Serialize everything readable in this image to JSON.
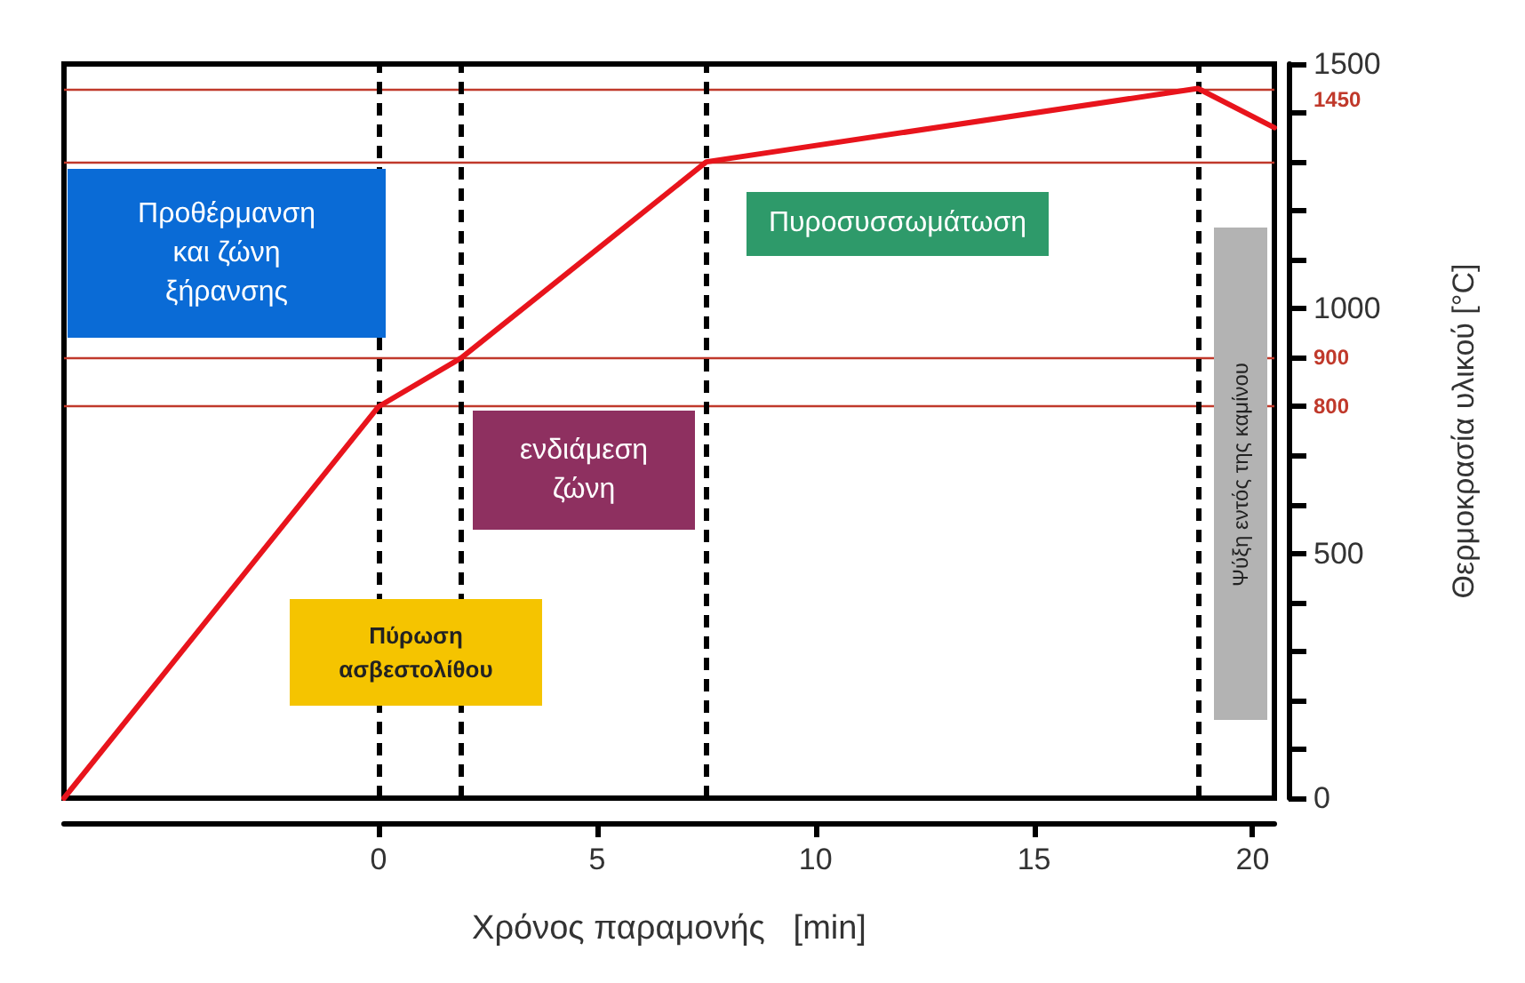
{
  "chart_data": {
    "type": "line",
    "xlabel": "Χρόνος παραμονής   [min]",
    "ylabel": "Θερμοκρασία υλικού [°C]",
    "x": [
      -7.2,
      0,
      1.9,
      7.5,
      18.75,
      20.5
    ],
    "series": [
      {
        "color": "#e8141c",
        "values": [
          0,
          800,
          900,
          1300,
          1450,
          1370
        ]
      }
    ],
    "xlim": [
      -7.2,
      20.5
    ],
    "xticks": [
      0,
      5,
      10,
      15,
      20
    ],
    "ylim": [
      0,
      1500
    ],
    "yticks": [
      0,
      {
        "value": 100,
        "label": null
      },
      {
        "value": 200,
        "label": null
      },
      {
        "value": 300,
        "label": null
      },
      {
        "value": 400,
        "label": null
      },
      500,
      {
        "value": 600,
        "label": null
      },
      {
        "value": 700,
        "label": null
      },
      {
        "value": 800,
        "label": null
      },
      {
        "value": 900,
        "label": null
      },
      1000,
      {
        "value": 1100,
        "label": null
      },
      {
        "value": 1200,
        "label": null
      },
      {
        "value": 1300,
        "label": null
      },
      {
        "value": 1400,
        "label": null
      },
      1500
    ],
    "ref_lines": [
      {
        "axis": "y",
        "value": 1450,
        "label": "1450",
        "color": "#c0392b"
      },
      {
        "axis": "y",
        "value": 1300,
        "color": "#c0392b"
      },
      {
        "axis": "y",
        "value": 900,
        "label": "900",
        "color": "#c0392b"
      },
      {
        "axis": "y",
        "value": 800,
        "label": "800",
        "color": "#c0392b"
      },
      {
        "axis": "x",
        "value": 0,
        "color": "#000000",
        "line_style": "dashed"
      },
      {
        "axis": "x",
        "value": 1.9,
        "color": "#000000",
        "line_style": "dashed"
      },
      {
        "axis": "x",
        "value": 7.5,
        "color": "#000000",
        "line_style": "dashed"
      },
      {
        "axis": "x",
        "value": 18.75,
        "color": "#000000",
        "line_style": "dashed"
      }
    ],
    "annotations": [
      "Προθέρμανση\nκαι ζώνη\nξήρανσης",
      "Πύρωση\nασβεστολίθου",
      "ενδιάμεση\nζώνη",
      "Πυροσυσσωμάτωση",
      "Ψύξη εντός της καμίνου"
    ],
    "grid": false,
    "marker": "none",
    "line_style": "solid"
  }
}
